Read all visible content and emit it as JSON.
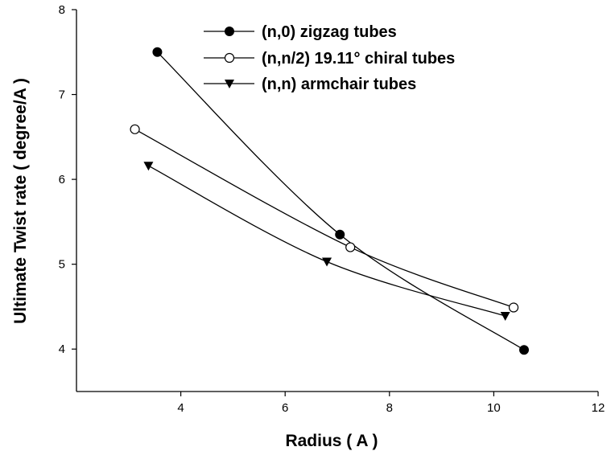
{
  "chart_data": {
    "type": "line",
    "title": "",
    "xlabel": "Radius ( A )",
    "ylabel": "Ultimate Twist rate ( degree/A )",
    "xlim": [
      2,
      12
    ],
    "ylim": [
      3.5,
      8
    ],
    "xticks": [
      "4",
      "6",
      "8",
      "10",
      "12"
    ],
    "yticks": [
      "4",
      "5",
      "6",
      "7",
      "8"
    ],
    "grid": false,
    "legend_position": "top-right",
    "series": [
      {
        "name": "(n,0) zigzag tubes",
        "marker": "filled-circle",
        "color": "#000000",
        "x": [
          3.55,
          7.05,
          10.58
        ],
        "y": [
          7.5,
          5.35,
          3.99
        ]
      },
      {
        "name": "(n,n/2) 19.11° chiral tubes",
        "marker": "open-circle",
        "color": "#000000",
        "x": [
          3.12,
          7.25,
          10.38
        ],
        "y": [
          6.59,
          5.2,
          4.49
        ]
      },
      {
        "name": "(n,n) armchair tubes",
        "marker": "filled-triangle-down",
        "color": "#000000",
        "x": [
          3.38,
          6.8,
          10.22
        ],
        "y": [
          6.16,
          5.03,
          4.39
        ]
      }
    ]
  }
}
